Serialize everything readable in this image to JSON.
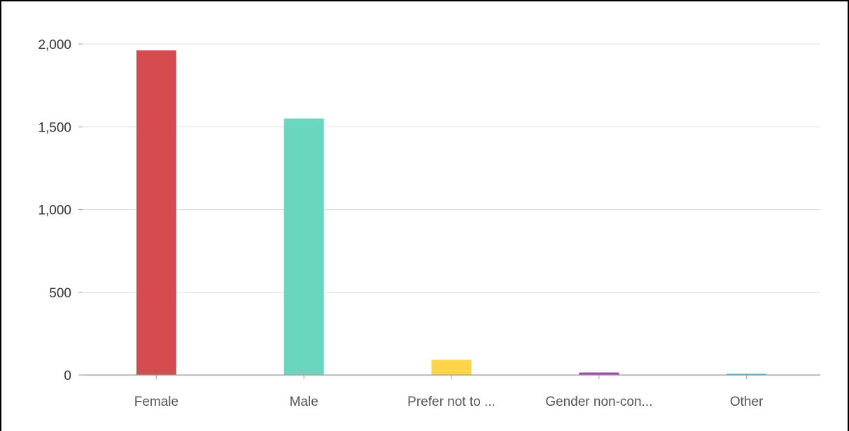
{
  "chart_data": {
    "type": "bar",
    "categories": [
      "Female",
      "Male",
      "Prefer not to ...",
      "Gender non-con...",
      "Other"
    ],
    "values": [
      1962,
      1550,
      92,
      15,
      8
    ],
    "colors": [
      "#d54b4f",
      "#68d7bd",
      "#fdd54b",
      "#9b4aa8",
      "#48b8e0"
    ],
    "ylim": [
      0,
      2000
    ],
    "yticks": [
      0,
      500,
      1000,
      1500,
      2000
    ],
    "ytick_labels": [
      "0",
      "500",
      "1,000",
      "1,500",
      "2,000"
    ],
    "grid": true,
    "title": "",
    "xlabel": "",
    "ylabel": ""
  }
}
